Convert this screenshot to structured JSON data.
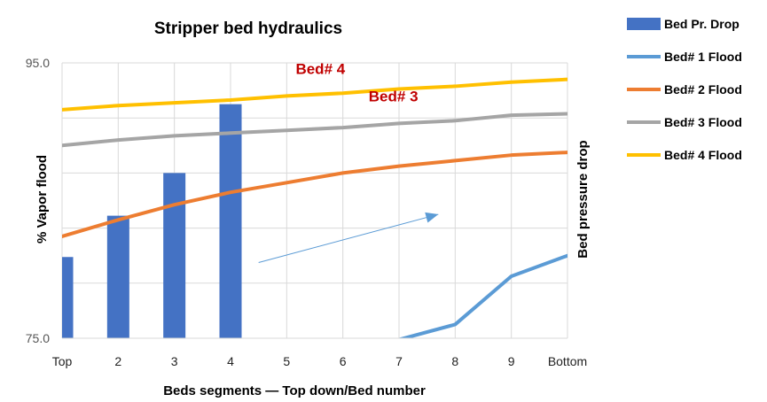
{
  "chart_data": {
    "type": "bar+line",
    "title": "Stripper bed hydraulics",
    "xlabel": "Beds segments — Top down/Bed number",
    "ylabel": "% Vapor flood",
    "y2label": "Bed pressure drop",
    "categories": [
      "Top",
      "2",
      "3",
      "4",
      "5",
      "6",
      "7",
      "8",
      "9",
      "Bottom"
    ],
    "ylim": [
      75.0,
      95.0
    ],
    "ytick_labels": [
      "95.0",
      "75.0"
    ],
    "grid": true,
    "legend_position": "right",
    "bars": {
      "name": "Bed Pr. Drop",
      "color": "#4472c4",
      "values": [
        80.9,
        83.9,
        87.0,
        92.0,
        null,
        null,
        null,
        null,
        null,
        null
      ]
    },
    "series": [
      {
        "name": "Bed# 1 Flood",
        "color": "#5b9bd5",
        "values": [
          null,
          null,
          null,
          null,
          null,
          null,
          74.9,
          76.0,
          79.5,
          81.0
        ]
      },
      {
        "name": "Bed# 2 Flood",
        "color": "#ed7d31",
        "values": [
          82.4,
          83.6,
          84.7,
          85.6,
          86.3,
          87.0,
          87.5,
          87.9,
          88.3,
          88.5
        ]
      },
      {
        "name": "Bed# 3 Flood",
        "color": "#a5a5a5",
        "values": [
          89.0,
          89.4,
          89.7,
          89.9,
          90.1,
          90.3,
          90.6,
          90.8,
          91.2,
          91.3
        ]
      },
      {
        "name": "Bed# 4 Flood",
        "color": "#ffc000",
        "values": [
          91.6,
          91.9,
          92.1,
          92.3,
          92.6,
          92.8,
          93.1,
          93.3,
          93.6,
          93.8
        ]
      }
    ],
    "annotations": [
      {
        "text": "Bed# 4",
        "x": 5.6,
        "y": 94.2
      },
      {
        "text": "Bed# 3",
        "x": 6.9,
        "y": 92.2
      }
    ],
    "arrow": {
      "from": [
        4.5,
        80.5
      ],
      "to": [
        7.7,
        84.0
      ],
      "color": "#5b9bd5"
    }
  }
}
